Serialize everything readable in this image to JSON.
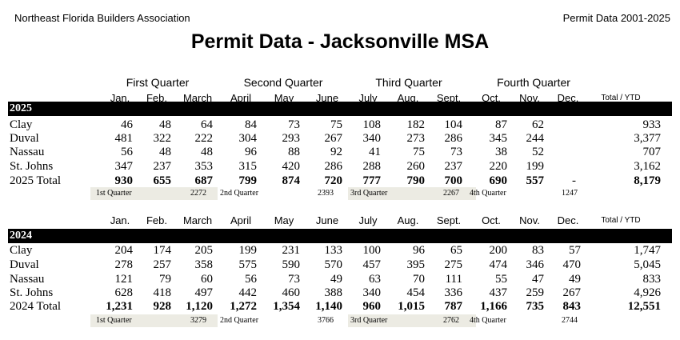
{
  "header": {
    "org": "Northeast Florida Builders Association",
    "right": "Permit Data 2001-2025",
    "title": "Permit Data - Jacksonville MSA"
  },
  "quarters": [
    "First Quarter",
    "Second Quarter",
    "Third Quarter",
    "Fourth Quarter"
  ],
  "months": [
    "Jan.",
    "Feb.",
    "March",
    "April",
    "May",
    "June",
    "July",
    "Aug.",
    "Sept.",
    "Oct.",
    "Nov.",
    "Dec.",
    "Total / YTD"
  ],
  "sections": [
    {
      "year": "2025",
      "rows": [
        {
          "label": "Clay",
          "cells": [
            "46",
            "48",
            "64",
            "84",
            "73",
            "75",
            "108",
            "182",
            "104",
            "87",
            "62",
            null,
            "933"
          ]
        },
        {
          "label": "Duval",
          "cells": [
            "481",
            "322",
            "222",
            "304",
            "293",
            "267",
            "340",
            "273",
            "286",
            "345",
            "244",
            null,
            "3,377"
          ]
        },
        {
          "label": "Nassau",
          "cells": [
            "56",
            "48",
            "48",
            "96",
            "88",
            "92",
            "41",
            "75",
            "73",
            "38",
            "52",
            null,
            "707"
          ]
        },
        {
          "label": "St. Johns",
          "cells": [
            "347",
            "237",
            "353",
            "315",
            "420",
            "286",
            "288",
            "260",
            "237",
            "220",
            "199",
            null,
            "3,162"
          ]
        }
      ],
      "total": {
        "label": "2025 Total",
        "cells": [
          "930",
          "655",
          "687",
          "799",
          "874",
          "720",
          "777",
          "790",
          "700",
          "690",
          "557",
          "-",
          "8,179"
        ]
      },
      "quarter_totals": [
        {
          "label": "1st Quarter",
          "value": "2272"
        },
        {
          "label": "2nd Quarter",
          "value": "2393"
        },
        {
          "label": "3rd Quarter",
          "value": "2267"
        },
        {
          "label": "4th Quarter",
          "value": "1247"
        }
      ]
    },
    {
      "year": "2024",
      "rows": [
        {
          "label": "Clay",
          "cells": [
            "204",
            "174",
            "205",
            "199",
            "231",
            "133",
            "100",
            "96",
            "65",
            "200",
            "83",
            "57",
            "1,747"
          ]
        },
        {
          "label": "Duval",
          "cells": [
            "278",
            "257",
            "358",
            "575",
            "590",
            "570",
            "457",
            "395",
            "275",
            "474",
            "346",
            "470",
            "5,045"
          ]
        },
        {
          "label": "Nassau",
          "cells": [
            "121",
            "79",
            "60",
            "56",
            "73",
            "49",
            "63",
            "70",
            "111",
            "55",
            "47",
            "49",
            "833"
          ]
        },
        {
          "label": "St. Johns",
          "cells": [
            "628",
            "418",
            "497",
            "442",
            "460",
            "388",
            "340",
            "454",
            "336",
            "437",
            "259",
            "267",
            "4,926"
          ]
        }
      ],
      "total": {
        "label": "2024 Total",
        "cells": [
          "1,231",
          "928",
          "1,120",
          "1,272",
          "1,354",
          "1,140",
          "960",
          "1,015",
          "787",
          "1,166",
          "735",
          "843",
          "12,551"
        ]
      },
      "quarter_totals": [
        {
          "label": "1st Quarter",
          "value": "3279"
        },
        {
          "label": "2nd Quarter",
          "value": "3766"
        },
        {
          "label": "3rd Quarter",
          "value": "2762"
        },
        {
          "label": "4th Quarter",
          "value": "2744"
        }
      ]
    }
  ]
}
